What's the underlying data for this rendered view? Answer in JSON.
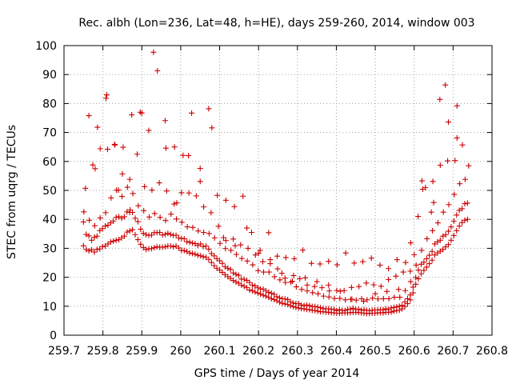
{
  "chart_data": {
    "type": "scatter",
    "title": "Rec. albh (Lon=236, Lat=48, h=HE), days 259-260, 2014, window 003",
    "xlabel": "GPS time / Days of year 2014",
    "ylabel": "STEC from uqrg / TECUs",
    "xlim": [
      259.7,
      260.8
    ],
    "ylim": [
      0,
      100
    ],
    "x_ticks": [
      "259.7",
      "259.8",
      "259.9",
      "260",
      "260.1",
      "260.2",
      "260.3",
      "260.4",
      "260.5",
      "260.6",
      "260.7",
      "260.8"
    ],
    "y_ticks": [
      "0",
      "10",
      "20",
      "30",
      "40",
      "50",
      "60",
      "70",
      "80",
      "90",
      "100"
    ],
    "marker": "plus",
    "grid": true,
    "legend": "none",
    "color": "#cc0000",
    "series": [
      {
        "x": [
          259.75,
          259.757,
          259.764,
          259.771,
          259.778,
          259.785,
          259.792,
          259.799,
          259.806,
          259.813,
          259.82,
          259.827,
          259.834,
          259.841,
          259.848,
          259.855,
          259.862,
          259.869,
          259.876,
          259.883,
          259.89,
          259.897,
          259.904,
          259.911,
          259.918,
          259.925,
          259.932,
          259.939,
          259.946,
          259.953,
          259.96,
          259.967,
          259.974,
          259.981,
          259.988,
          259.995,
          260.002,
          260.009,
          260.016,
          260.023,
          260.03,
          260.037,
          260.044,
          260.051,
          260.058,
          260.065,
          260.072,
          260.079,
          260.086,
          260.093,
          260.1,
          260.107,
          260.114,
          260.121,
          260.128,
          260.135,
          260.142,
          260.149,
          260.156,
          260.163,
          260.17,
          260.177,
          260.184,
          260.191,
          260.198,
          260.205,
          260.212,
          260.219,
          260.226,
          260.233,
          260.24,
          260.247,
          260.254,
          260.261,
          260.268,
          260.275,
          260.282,
          260.289,
          260.296,
          260.303,
          260.31,
          260.317,
          260.324,
          260.331,
          260.338,
          260.345,
          260.352,
          260.359,
          260.366,
          260.373,
          260.38,
          260.387,
          260.394,
          260.401,
          260.408,
          260.415,
          260.422,
          260.429,
          260.436,
          260.443,
          260.45,
          260.457,
          260.464,
          260.471,
          260.478,
          260.485,
          260.492,
          260.499,
          260.506,
          260.513,
          260.52,
          260.527,
          260.534,
          260.541,
          260.548,
          260.555,
          260.562,
          260.569,
          260.576,
          260.583,
          260.59,
          260.597,
          260.604,
          260.611,
          260.618,
          260.625,
          260.632,
          260.639,
          260.646,
          260.653,
          260.66,
          260.667,
          260.674,
          260.681,
          260.688,
          260.695,
          260.702,
          260.709,
          260.716,
          260.723,
          260.73,
          260.737
        ],
        "y": [
          30.9,
          29.6,
          29.1,
          29.5,
          28.7,
          29.6,
          29.8,
          30.6,
          30.8,
          31.5,
          32.2,
          32.5,
          32.8,
          33,
          33.6,
          34.2,
          35.6,
          36,
          36.4,
          34.7,
          33,
          31.4,
          30.3,
          29.6,
          29.8,
          29.9,
          30.2,
          30.5,
          30.4,
          30.4,
          30.5,
          30.8,
          30.8,
          30.5,
          30.8,
          30.1,
          29.3,
          29.2,
          28.9,
          28.4,
          28.2,
          28,
          27.6,
          27.4,
          27.1,
          26.9,
          26.2,
          25.1,
          24,
          23.1,
          22.5,
          21.7,
          20.9,
          20.2,
          19.6,
          18.9,
          18.4,
          17.9,
          17.3,
          16.9,
          16.4,
          15.6,
          15.3,
          14.9,
          14.6,
          14.2,
          13.8,
          13.5,
          13.1,
          12.6,
          12.3,
          11.9,
          11.4,
          11,
          10.8,
          10.6,
          10.2,
          9.9,
          9.6,
          9.4,
          9.2,
          9.1,
          8.9,
          8.8,
          8.6,
          8.5,
          8.3,
          8.1,
          8.1,
          8,
          7.9,
          7.8,
          7.7,
          7.6,
          7.6,
          7.7,
          7.7,
          7.7,
          7.8,
          7.9,
          7.9,
          7.8,
          7.7,
          7.6,
          7.5,
          7.5,
          7.6,
          7.6,
          7.7,
          7.8,
          7.7,
          7.9,
          7.9,
          8,
          8.3,
          8.5,
          8.6,
          9.1,
          9.9,
          10.9,
          12.2,
          14.6,
          17.6,
          19.5,
          21.2,
          22.4,
          23.5,
          24.7,
          25.9,
          27.7,
          28.4,
          29,
          29.6,
          30.5,
          31.3,
          32.8,
          34.4,
          36.1,
          37.7,
          38.9,
          39.7,
          40
        ]
      },
      {
        "x": [
          259.75,
          259.757,
          259.764,
          259.771,
          259.778,
          259.785,
          259.792,
          259.799,
          259.806,
          259.813,
          259.82,
          259.827,
          259.834,
          259.841,
          259.848,
          259.855,
          259.862,
          259.869,
          259.876,
          259.883,
          259.89,
          259.897,
          259.904,
          259.911,
          259.918,
          259.925,
          259.932,
          259.939,
          259.946,
          259.953,
          259.96,
          259.967,
          259.974,
          259.981,
          259.988,
          259.995,
          260.002,
          260.009,
          260.016,
          260.023,
          260.03,
          260.037,
          260.044,
          260.051,
          260.058,
          260.065,
          260.072,
          260.079,
          260.086,
          260.093,
          260.1,
          260.107,
          260.114,
          260.121,
          260.128,
          260.135,
          260.142,
          260.149,
          260.156,
          260.163,
          260.17,
          260.177,
          260.184,
          260.191,
          260.198,
          260.205,
          260.212,
          260.219,
          260.226,
          260.233,
          260.24,
          260.247,
          260.254,
          260.261,
          260.268,
          260.275,
          260.282,
          260.289,
          260.296,
          260.303,
          260.31,
          260.317,
          260.324,
          260.331,
          260.338,
          260.345,
          260.352,
          260.359,
          260.366,
          260.373,
          260.38,
          260.387,
          260.394,
          260.401,
          260.408,
          260.415,
          260.422,
          260.429,
          260.436,
          260.443,
          260.45,
          260.457,
          260.464,
          260.471,
          260.478,
          260.485,
          260.492,
          260.499,
          260.506,
          260.513,
          260.52,
          260.527,
          260.534,
          260.541,
          260.548,
          260.555,
          260.562,
          260.569,
          260.576,
          260.583,
          260.59,
          260.597,
          260.604,
          260.611,
          260.618,
          260.625,
          260.632,
          260.639,
          260.646,
          260.653,
          260.66,
          260.667,
          260.674,
          260.681,
          260.688,
          260.695,
          260.702,
          260.709,
          260.716,
          260.723,
          260.73,
          260.737
        ],
        "y": [
          39.1,
          34.8,
          34.3,
          32.8,
          33.8,
          34.2,
          36.1,
          36.8,
          37.7,
          38,
          38.8,
          39.4,
          40.7,
          40.9,
          40.4,
          40.9,
          42.6,
          42.4,
          42.4,
          40.4,
          39.2,
          36.6,
          35.2,
          34.7,
          34.5,
          34.6,
          35.4,
          35.4,
          35.5,
          34.6,
          34.8,
          35.2,
          34.8,
          34.5,
          34.5,
          33.6,
          33.4,
          33.3,
          32.3,
          32.1,
          31.8,
          31.6,
          31,
          31.5,
          30.6,
          30.8,
          29.7,
          28.2,
          27.4,
          26.4,
          25.7,
          24.8,
          23.6,
          23.1,
          22.7,
          21.5,
          21,
          20.7,
          19.4,
          19.3,
          18.9,
          18.2,
          17.3,
          17,
          16.4,
          16,
          15.9,
          15.3,
          14.8,
          14.5,
          14.1,
          13.3,
          12.9,
          12.6,
          12.5,
          12.3,
          11.6,
          11.1,
          10.9,
          10.9,
          10.4,
          10.2,
          10.4,
          10.2,
          9.9,
          9.9,
          9.7,
          9.5,
          9.2,
          9.1,
          9.1,
          9,
          8.9,
          8.5,
          8.8,
          8.6,
          8.5,
          8.9,
          9,
          9.3,
          8.9,
          9,
          8.6,
          8.8,
          8.6,
          8.5,
          8.6,
          8.7,
          8.7,
          8.8,
          8.8,
          9.1,
          8.9,
          9.4,
          9.6,
          9.8,
          10,
          10.3,
          11.5,
          12.6,
          13.9,
          16.6,
          19.9,
          22.5,
          24.5,
          25.2,
          26.4,
          27.6,
          28.9,
          31.5,
          32.2,
          32.8,
          34.2,
          34.7,
          35.9,
          37.4,
          39.4,
          41.5,
          43.1,
          43.7,
          45.4,
          45.6
        ]
      },
      {
        "x": [
          259.751,
          259.765,
          259.779,
          259.793,
          259.807,
          259.821,
          259.835,
          259.849,
          259.863,
          259.877,
          259.891,
          259.905,
          259.919,
          259.933,
          259.947,
          259.961,
          259.975,
          259.989,
          260.003,
          260.017,
          260.031,
          260.045,
          260.059,
          260.073,
          260.087,
          260.101,
          260.115,
          260.129,
          260.143,
          260.157,
          260.171,
          260.185,
          260.199,
          260.213,
          260.227,
          260.241,
          260.255,
          260.269,
          260.283,
          260.297,
          260.311,
          260.325,
          260.339,
          260.353,
          260.367,
          260.381,
          260.395,
          260.409,
          260.423,
          260.437,
          260.451,
          260.465,
          260.479,
          260.493,
          260.507,
          260.521,
          260.535,
          260.549,
          260.563,
          260.577,
          260.591,
          260.605,
          260.619,
          260.633,
          260.647,
          260.661,
          260.675,
          260.689,
          260.703,
          260.717,
          260.731
        ],
        "y": [
          42.6,
          39.7,
          37.8,
          40.5,
          42.3,
          47.4,
          50.1,
          47.9,
          51.1,
          48.9,
          44.7,
          43,
          40.8,
          42,
          40.7,
          39.6,
          41.8,
          40.1,
          39,
          37.4,
          37.2,
          36,
          35.5,
          35.1,
          33.6,
          31.7,
          29.9,
          29.3,
          27.9,
          26.5,
          25.6,
          24.3,
          22.3,
          21.8,
          21.8,
          20.2,
          19.1,
          18.2,
          18.3,
          16.7,
          15.8,
          15.3,
          14.7,
          14.3,
          13.5,
          13.2,
          12.7,
          12.7,
          12.2,
          12.4,
          12.1,
          12.6,
          12.2,
          12.8,
          12.5,
          12.6,
          12.6,
          13.1,
          13.1,
          15.4,
          18.5,
          24.2,
          29.3,
          33.3,
          36.1,
          38.8,
          42.5,
          45.1,
          48.6,
          52.3,
          53.8
        ]
      },
      {
        "x": [
          259.755,
          259.774,
          259.793,
          259.812,
          259.831,
          259.85,
          259.869,
          259.888,
          259.907,
          259.926,
          259.945,
          259.964,
          259.983,
          260.002,
          260.021,
          260.04,
          260.059,
          260.078,
          260.097,
          260.116,
          260.135,
          260.154,
          260.173,
          260.192,
          260.211,
          260.23,
          260.249,
          260.268,
          260.287,
          260.306,
          260.325,
          260.344,
          260.363,
          260.382,
          260.401,
          260.42,
          260.439,
          260.458,
          260.477,
          260.496,
          260.515,
          260.534,
          260.553,
          260.572,
          260.591,
          260.61,
          260.629,
          260.648,
          260.667,
          260.686,
          260.705,
          260.724
        ],
        "y": [
          50.7,
          58.8,
          64.4,
          64.2,
          65.7,
          55.7,
          53.8,
          62.5,
          51.3,
          50.1,
          52.6,
          49.8,
          45.3,
          49.2,
          49.1,
          48.1,
          44.3,
          42.3,
          37.6,
          32.7,
          33.2,
          31.2,
          30,
          27.7,
          25.4,
          24.7,
          22.9,
          19.7,
          18.6,
          19.5,
          17.3,
          16.8,
          16.4,
          15.3,
          15.4,
          15.4,
          16.5,
          16.8,
          18,
          17.4,
          16.9,
          19.2,
          20.4,
          21.8,
          31.9,
          41,
          51,
          53.1,
          58.7,
          60.2,
          60.3,
          65.7
        ]
      },
      {
        "x": [
          259.764,
          259.786,
          259.808,
          259.83,
          259.852,
          259.874,
          259.896,
          259.918,
          259.94,
          259.962,
          259.984,
          260.006,
          260.028,
          260.05,
          260.072,
          260.094,
          260.116,
          260.138,
          260.16,
          260.182,
          260.204,
          260.226,
          260.248,
          260.27,
          260.292,
          260.314,
          260.336,
          260.358,
          260.38,
          260.402,
          260.424,
          260.446,
          260.468,
          260.49,
          260.512,
          260.534,
          260.556,
          260.578,
          260.6,
          260.622,
          260.644,
          260.666,
          260.688,
          260.71
        ],
        "y": [
          75.8,
          71.8,
          81.8,
          65.9,
          64.9,
          76.1,
          77,
          70.7,
          91.3,
          64.6,
          65,
          62.1,
          76.7,
          57.6,
          78.2,
          48.3,
          46.6,
          44.4,
          48,
          35.5,
          29.3,
          35.4,
          27.3,
          26.8,
          26.4,
          29.4,
          24.8,
          24.6,
          25.5,
          24.3,
          28.4,
          24.9,
          25.4,
          26.6,
          24.2,
          23,
          26.1,
          25.1,
          27.8,
          50.4,
          42.5,
          81.4,
          73.6,
          79.2
        ]
      },
      {
        "x": [
          259.78,
          259.81,
          259.84,
          259.87,
          259.9,
          259.93,
          259.96,
          259.99,
          260.02,
          260.05,
          260.08,
          260.11,
          260.14,
          260.17,
          260.2,
          260.23,
          260.26,
          260.29,
          260.32,
          260.35,
          260.38,
          260.41,
          260.44,
          260.47,
          260.5,
          260.53,
          260.56,
          260.59,
          260.62,
          260.65,
          260.68,
          260.71,
          260.74
        ],
        "y": [
          57.5,
          83,
          50.1,
          43.3,
          76.7,
          97.7,
          74.1,
          45.7,
          62,
          53.1,
          71.6,
          33.7,
          30.9,
          37,
          28.3,
          26.1,
          21.4,
          20.6,
          19.8,
          18.5,
          17.3,
          15.2,
          12.4,
          11.7,
          14.3,
          15.1,
          15.8,
          22.1,
          53.3,
          45.8,
          86.4,
          68.1,
          58.5
        ]
      }
    ]
  }
}
